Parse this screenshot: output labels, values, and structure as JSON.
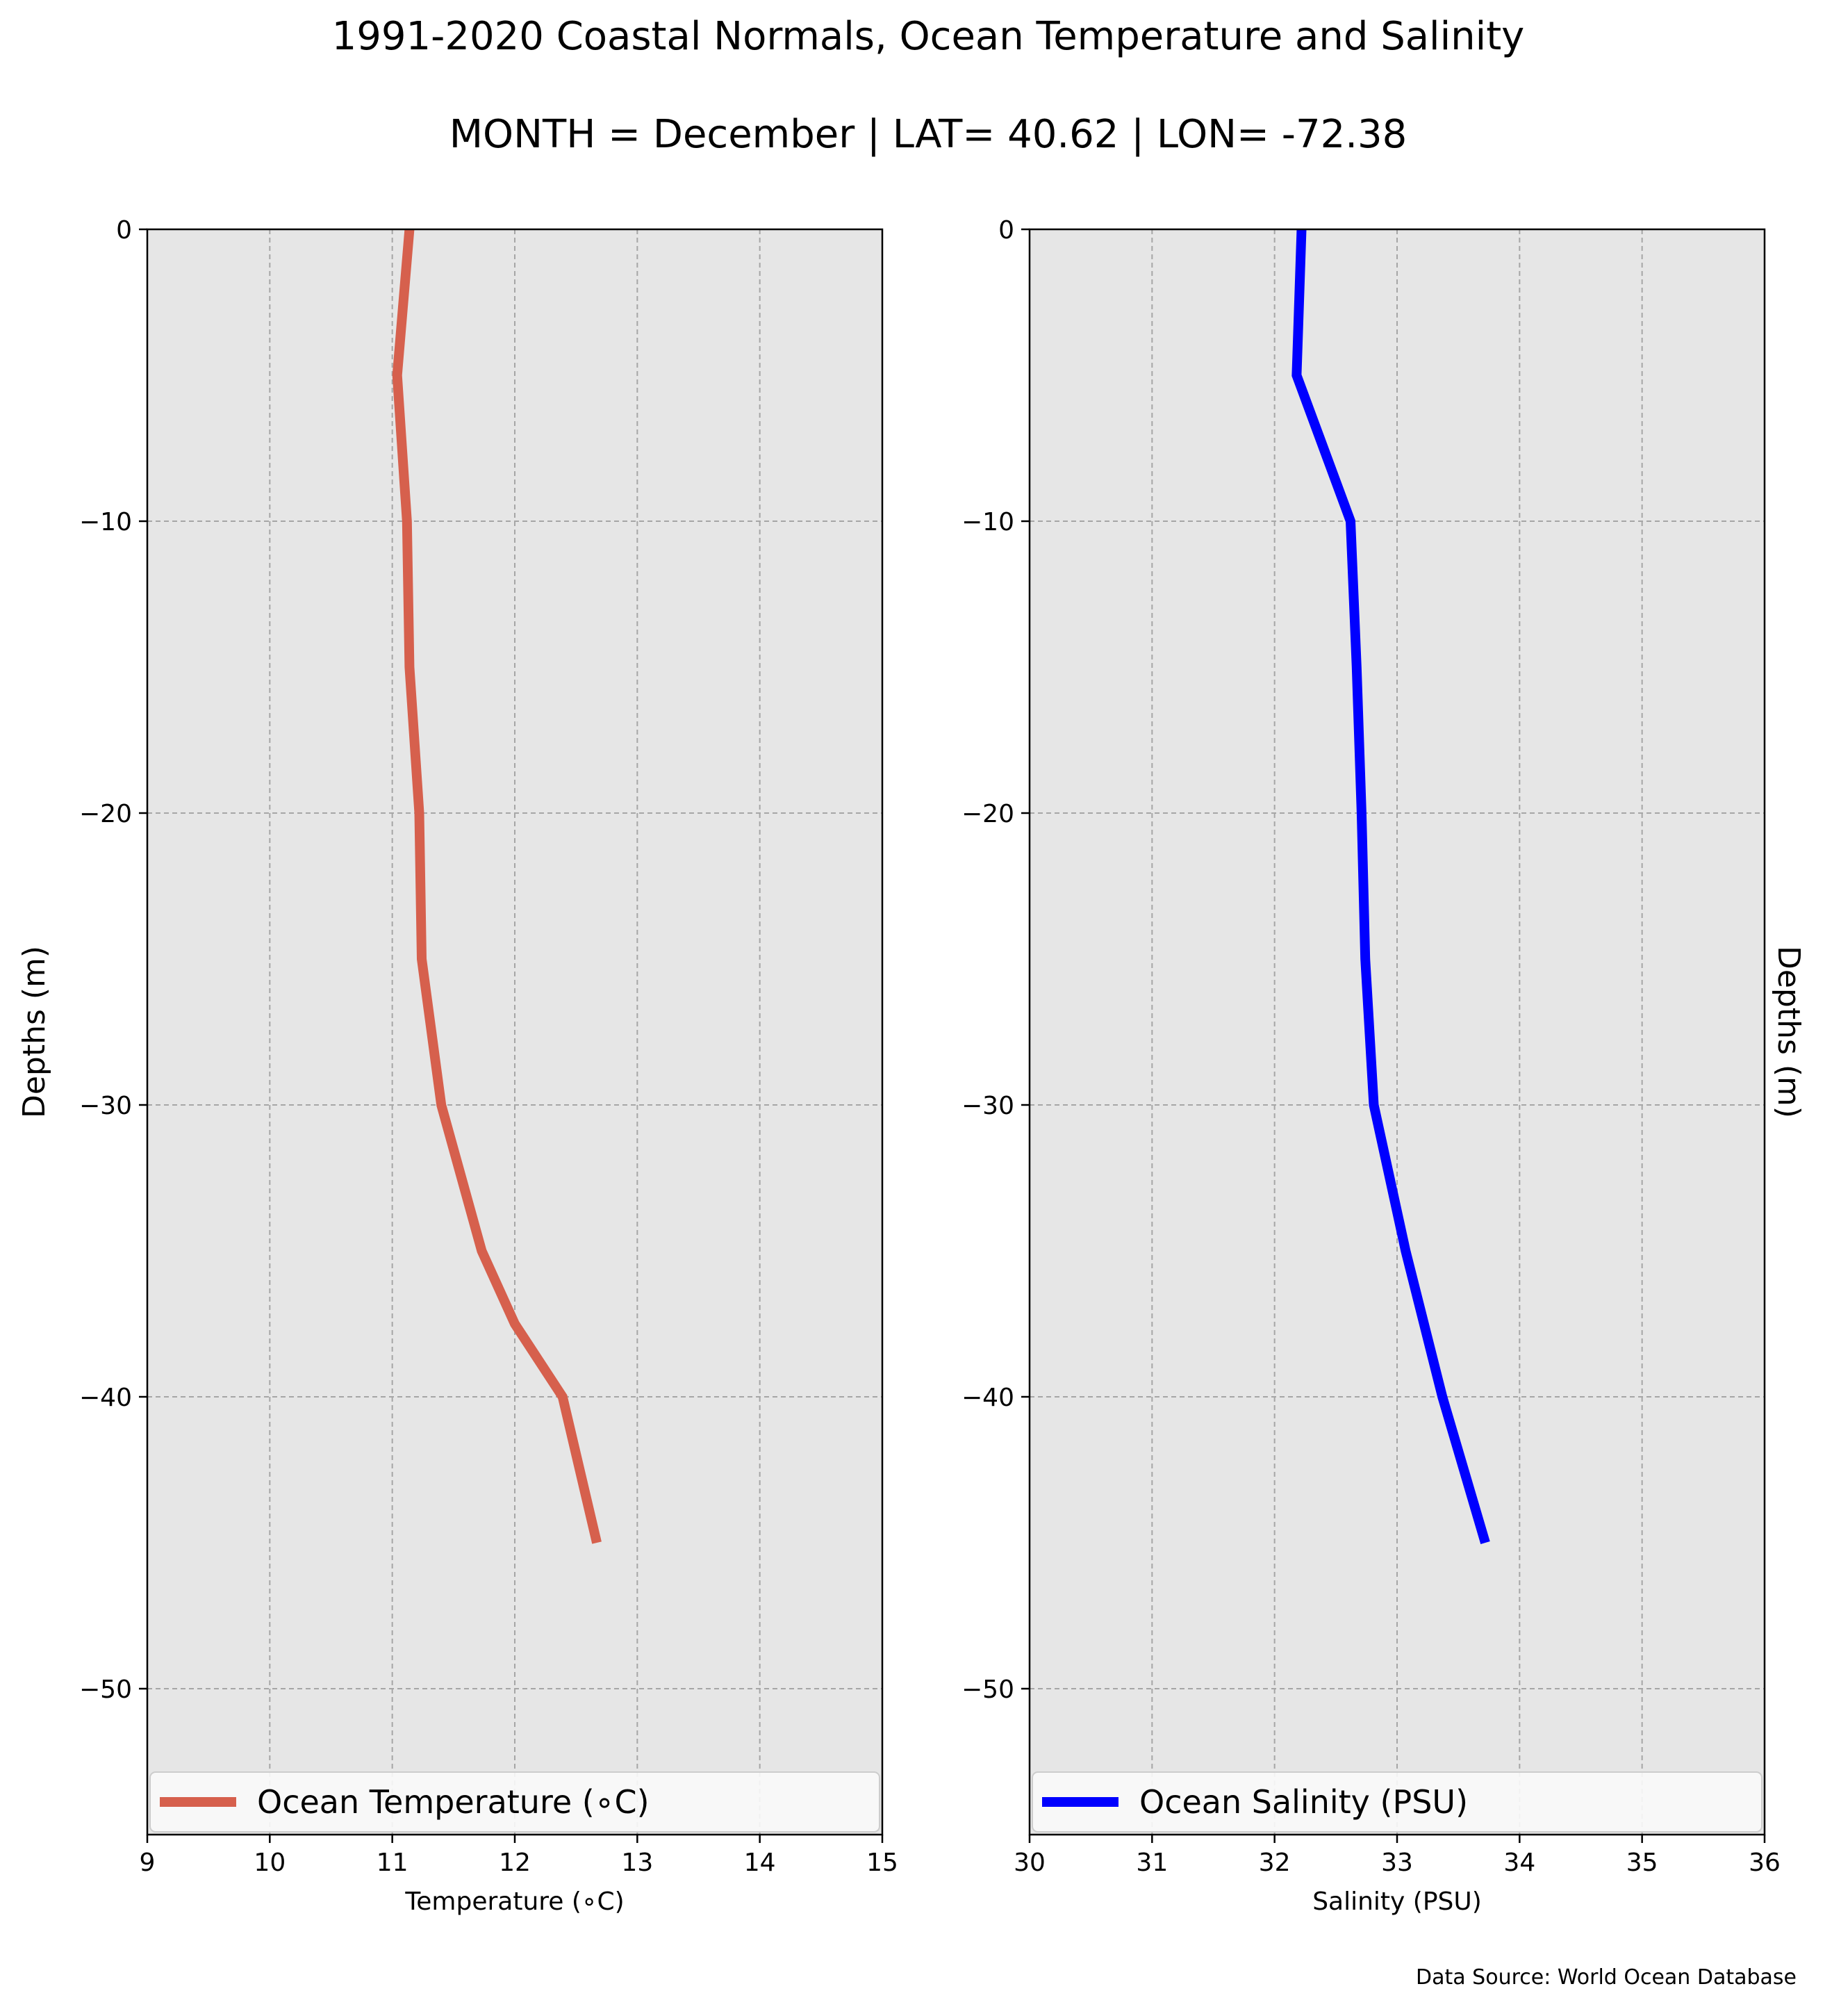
{
  "header": {
    "title": "1991-2020 Coastal Normals, Ocean Temperature and Salinity",
    "subtitle": "MONTH = December | LAT= 40.62 | LON= -72.38"
  },
  "footer": {
    "source": "Data Source: World Ocean Database"
  },
  "chart_data": [
    {
      "type": "line",
      "xlabel": "Temperature ($^\\circ$C)",
      "xlabel_display": "Temperature (∘C)",
      "ylabel": "Depths (m)",
      "ylabel_position": "left",
      "xlim": [
        9,
        15
      ],
      "ylim": [
        -55,
        0
      ],
      "xticks": [
        9,
        10,
        11,
        12,
        13,
        14,
        15
      ],
      "yticks": [
        0,
        -10,
        -20,
        -30,
        -40,
        -50
      ],
      "ytick_labels": [
        "0",
        "−10",
        "−20",
        "−30",
        "−40",
        "−50"
      ],
      "grid": true,
      "legend": "bottom",
      "background": "#e6e6e6",
      "series": [
        {
          "name": "Ocean Temperature (∘C)",
          "color": "#d6604d",
          "x": [
            11.14,
            11.04,
            11.12,
            11.14,
            11.22,
            11.24,
            11.4,
            11.73,
            12.0,
            12.39,
            12.67
          ],
          "y": [
            0,
            -5,
            -10,
            -15,
            -20,
            -25,
            -30,
            -35,
            -37.5,
            -40,
            -45
          ]
        }
      ]
    },
    {
      "type": "line",
      "xlabel": "Salinity (PSU)",
      "ylabel": "Depths (m)",
      "ylabel_position": "right",
      "xlim": [
        30,
        36
      ],
      "ylim": [
        -55,
        0
      ],
      "xticks": [
        30,
        31,
        32,
        33,
        34,
        35,
        36
      ],
      "yticks": [
        0,
        -10,
        -20,
        -30,
        -40,
        -50
      ],
      "ytick_labels": [
        "0",
        "−10",
        "−20",
        "−30",
        "−40",
        "−50"
      ],
      "grid": true,
      "legend": "bottom",
      "background": "#e6e6e6",
      "series": [
        {
          "name": "Ocean Salinity (PSU)",
          "color": "#0000ff",
          "x": [
            32.22,
            32.18,
            32.62,
            32.67,
            32.71,
            32.74,
            32.81,
            33.07,
            33.37,
            33.72
          ],
          "y": [
            0,
            -5,
            -10,
            -15,
            -20,
            -25,
            -30,
            -35,
            -40,
            -45
          ]
        }
      ]
    }
  ]
}
